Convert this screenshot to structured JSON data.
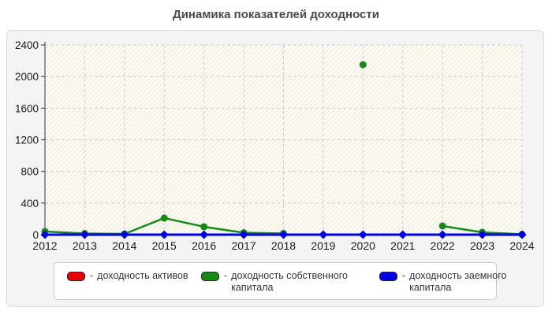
{
  "title": "Динамика показателей доходности",
  "legend": {
    "separator": "-"
  },
  "chart_data": {
    "type": "line",
    "title": "Динамика показателей доходности",
    "x": [
      2012,
      2013,
      2014,
      2015,
      2016,
      2017,
      2018,
      2019,
      2020,
      2021,
      2022,
      2023,
      2024
    ],
    "y_ticks": [
      0,
      400,
      800,
      1200,
      1600,
      2000,
      2400
    ],
    "ylim": [
      0,
      2400
    ],
    "grid": true,
    "legend_position": "bottom",
    "series": [
      {
        "name": "доходность активов",
        "color": "#e60000",
        "marker": "square",
        "values": [
          0,
          0,
          0,
          0,
          0,
          0,
          0,
          0,
          0,
          0,
          0,
          0,
          0
        ]
      },
      {
        "name": "доходность собственного капитала",
        "color": "#168a16",
        "marker": "circle",
        "values": [
          40,
          15,
          10,
          210,
          100,
          25,
          15,
          null,
          2150,
          null,
          110,
          30,
          5
        ]
      },
      {
        "name": "доходность заемного капитала",
        "color": "#0000e6",
        "marker": "diamond",
        "values": [
          0,
          0,
          0,
          0,
          0,
          0,
          0,
          0,
          0,
          0,
          0,
          0,
          0
        ]
      }
    ],
    "colors": {
      "panel_bg": "#f4f4f4",
      "plot_bg": "#fffdf3",
      "hatch_line": "#e9e6da",
      "grid_line": "#cfcfcf",
      "axis_line": "#333333",
      "tick_text": "#1a1a1a",
      "title_text": "#4a4a4a"
    }
  }
}
